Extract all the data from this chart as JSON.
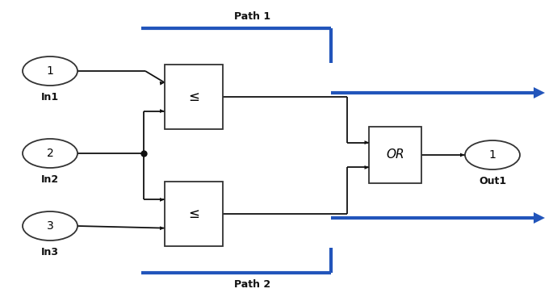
{
  "bg_color": "#ffffff",
  "block_facecolor": "white",
  "block_edgecolor": "#333333",
  "line_color": "#111111",
  "path_color": "#2255bb",
  "text_color": "#111111",
  "in1_label": "In1",
  "in2_label": "In2",
  "in3_label": "In3",
  "out1_label": "Out1",
  "path1_label": "Path 1",
  "path2_label": "Path 2",
  "rel_symbol": "≤",
  "or_symbol": "OR"
}
